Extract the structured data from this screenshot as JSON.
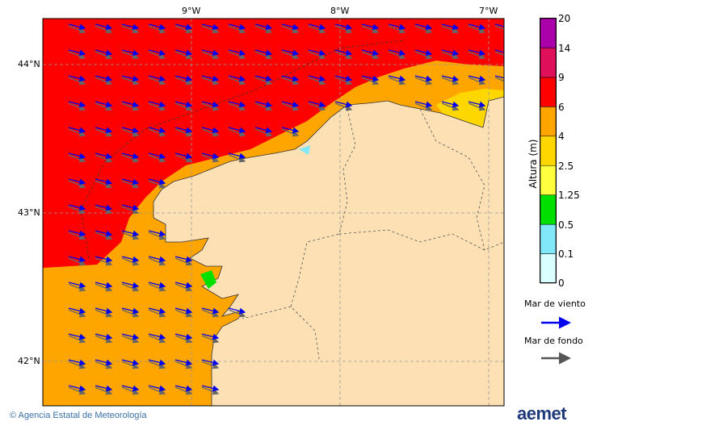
{
  "map": {
    "lon_ticks": [
      "9°W",
      "8°W",
      "7°W"
    ],
    "lat_ticks": [
      "44°N",
      "43°N",
      "42°N"
    ]
  },
  "colorbar": {
    "title": "Altura (m)",
    "levels": [
      "0",
      "0.1",
      "0.5",
      "1.25",
      "2.5",
      "4",
      "6",
      "9",
      "14",
      "20"
    ],
    "colors": [
      "#d9ffff",
      "#80e8f8",
      "#00e000",
      "#ffff40",
      "#ffd700",
      "#ffa500",
      "#ff0000",
      "#e0105a",
      "#aa00aa"
    ]
  },
  "arrow_legend": {
    "wind_sea": "Mar de viento",
    "wind_sea_color": "#0000ee",
    "swell": "Mar de fondo",
    "swell_color": "#555555"
  },
  "footer": {
    "credit": "© Agencia Estatal de Meteorología",
    "brand": "aemet"
  }
}
